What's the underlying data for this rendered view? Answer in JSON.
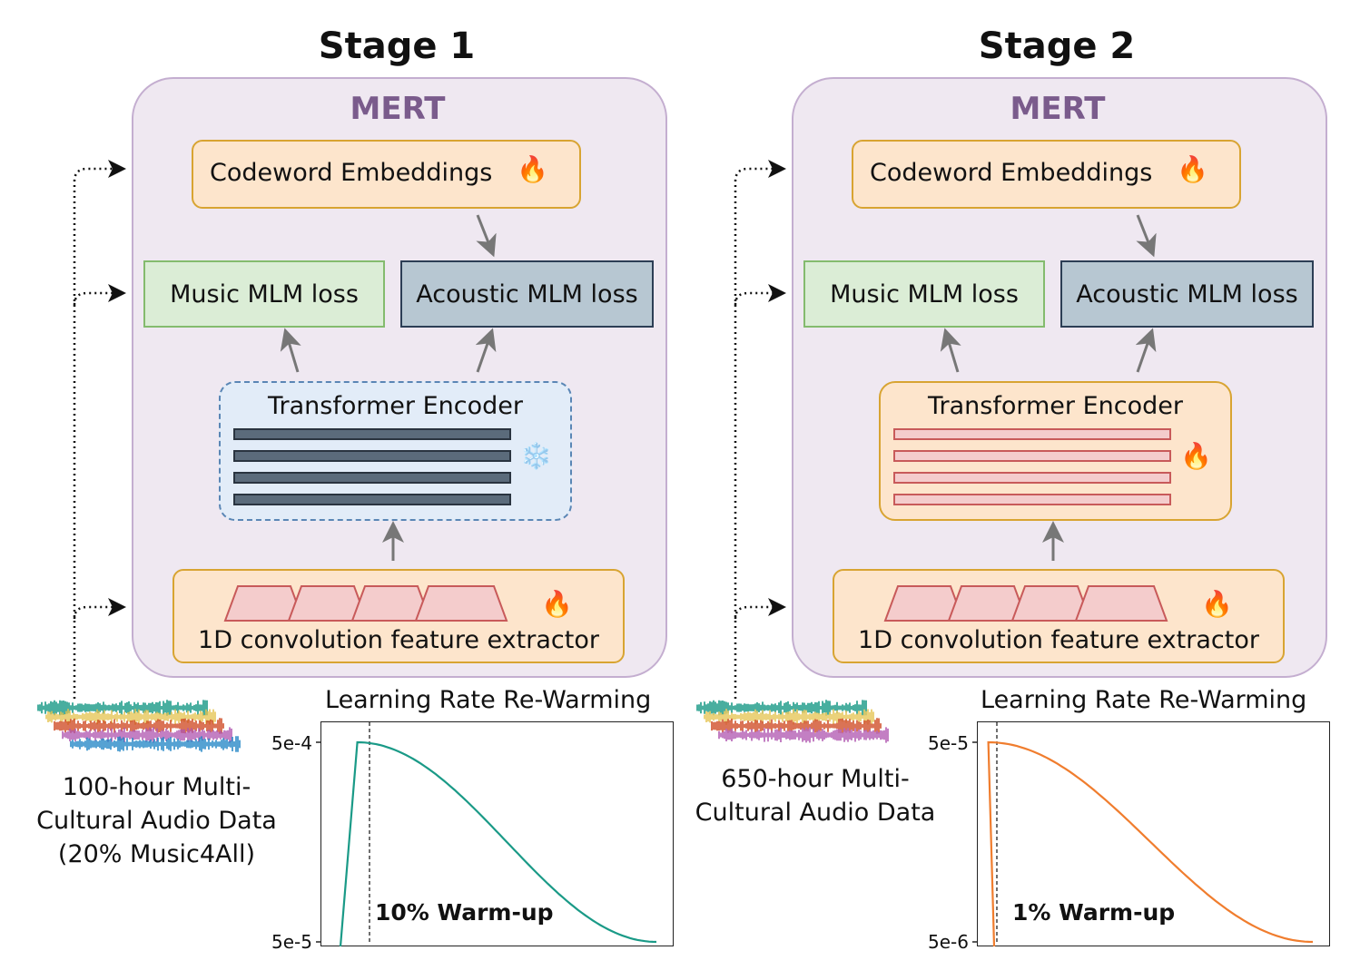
{
  "stages": [
    {
      "title": "Stage 1",
      "model_label": "MERT",
      "codeword_label": "Codeword Embeddings",
      "music_loss_label": "Music MLM loss",
      "acoustic_loss_label": "Acoustic MLM loss",
      "encoder_label": "Transformer Encoder",
      "encoder_state_icon": "snowflake-icon",
      "conv_label": "1D convolution feature extractor",
      "data_caption": [
        "100-hour Multi-",
        "Cultural Audio Data",
        "(20% Music4All)"
      ],
      "lr_title": "Learning Rate Re-Warming",
      "warmup_label": "10% Warm-up",
      "y_ticks": [
        "5e-4",
        "5e-5"
      ],
      "warmup_fraction": 0.1,
      "curve_color": "#1a9a87"
    },
    {
      "title": "Stage 2",
      "model_label": "MERT",
      "codeword_label": "Codeword Embeddings",
      "music_loss_label": "Music MLM loss",
      "acoustic_loss_label": "Acoustic MLM loss",
      "encoder_label": "Transformer Encoder",
      "encoder_state_icon": "fire-icon",
      "conv_label": "1D convolution feature extractor",
      "data_caption": [
        "650-hour Multi-",
        "Cultural Audio Data"
      ],
      "lr_title": "Learning Rate Re-Warming",
      "warmup_label": "1% Warm-up",
      "y_ticks": [
        "5e-5",
        "5e-6"
      ],
      "warmup_fraction": 0.01,
      "curve_color": "#f07d2e"
    }
  ],
  "icons": {
    "fire": "🔥",
    "snowflake": "❄️"
  },
  "colors": {
    "mert_background": "#efe8f1",
    "mert_border": "#c4aed0",
    "orange_fill": "#fde5cc",
    "green_fill": "#dbedd6",
    "slate_fill": "#b7c7d2",
    "frozen_fill": "#e2ecf8",
    "waveforms": [
      "#1a9a87",
      "#e6c65a",
      "#d1502b",
      "#b45fb4",
      "#2b8ac8"
    ]
  }
}
